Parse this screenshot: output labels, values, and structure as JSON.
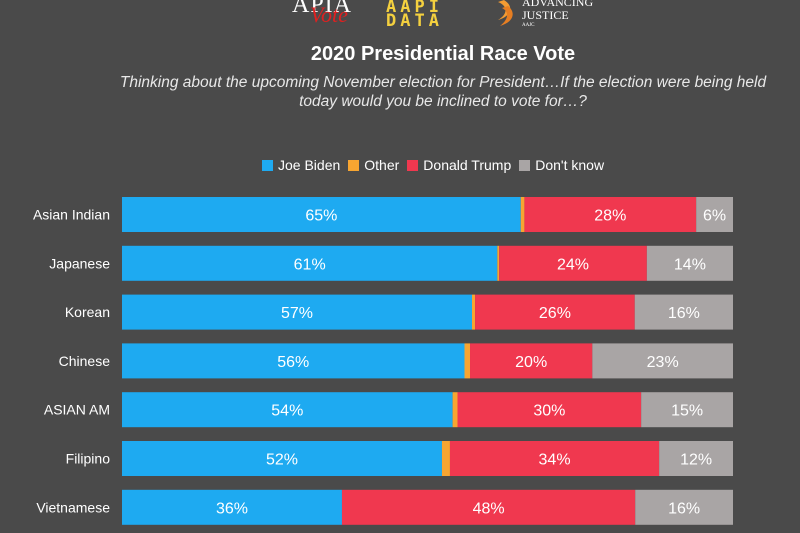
{
  "logos": {
    "apia_text": "APIA",
    "vote_text": "Vote",
    "aapi_row1": "AAPI",
    "aapi_row2": "DATA",
    "aj_line1": "ADVANCING",
    "aj_line2": "JUSTICE",
    "aj_sub": "AAJC"
  },
  "colors": {
    "background": "#4a4a4a",
    "biden": "#1eaaf1",
    "other": "#f7a531",
    "trump": "#f0384f",
    "dont_know": "#a9a5a5"
  },
  "chart_data": {
    "type": "bar",
    "orientation": "horizontal",
    "stacked": true,
    "normalized": true,
    "title": "2020 Presidential Race Vote",
    "subtitle": "Thinking about the upcoming November election for President…If the election were being held today would you be inclined to vote for…?",
    "legend_position": "top",
    "grid": false,
    "xlim": [
      0,
      100
    ],
    "categories": [
      "Asian Indian",
      "Japanese",
      "Korean",
      "Chinese",
      "ASIAN AM",
      "Filipino",
      "Vietnamese"
    ],
    "series": [
      {
        "name": "Joe Biden",
        "color": "#1eaaf1",
        "values": [
          65,
          61,
          57,
          56,
          54,
          52,
          36
        ],
        "labels": [
          "65%",
          "61%",
          "57%",
          "56%",
          "54%",
          "52%",
          "36%"
        ]
      },
      {
        "name": "Other",
        "color": "#f7a531",
        "values": [
          0.6,
          0.3,
          0.5,
          0.9,
          0.8,
          1.3,
          0
        ],
        "labels": [
          "",
          "",
          "",
          "",
          "",
          "",
          ""
        ]
      },
      {
        "name": "Donald Trump",
        "color": "#f0384f",
        "values": [
          28,
          24,
          26,
          20,
          30,
          34,
          48
        ],
        "labels": [
          "28%",
          "24%",
          "26%",
          "20%",
          "30%",
          "34%",
          "48%"
        ]
      },
      {
        "name": "Don't know",
        "color": "#a9a5a5",
        "values": [
          6,
          14,
          16,
          23,
          15,
          12,
          16
        ],
        "labels": [
          "6%",
          "14%",
          "16%",
          "23%",
          "15%",
          "12%",
          "16%"
        ]
      }
    ]
  }
}
